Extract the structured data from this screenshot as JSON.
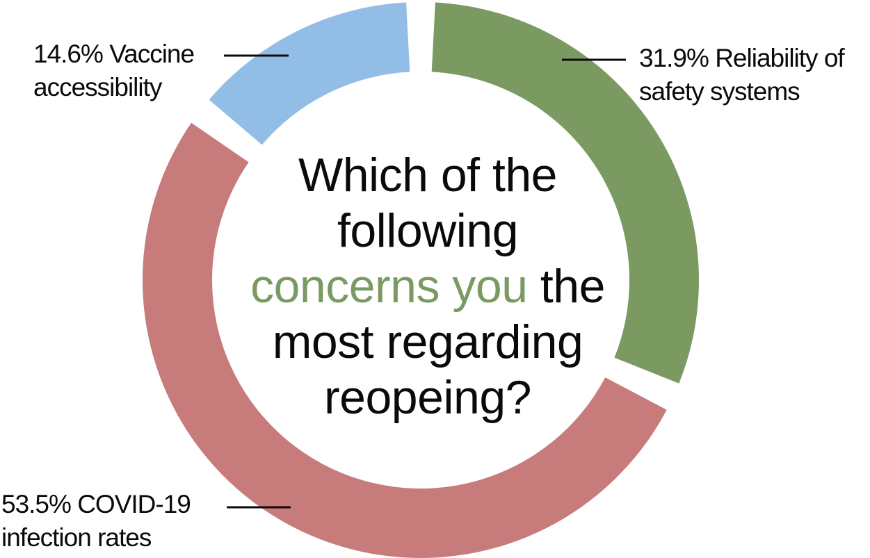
{
  "colors": {
    "vaccine": "#92bde6",
    "reliability": "#7a9a62",
    "covid": "#c77b7b",
    "highlight": "#7a9a62",
    "text": "#0a0a0a"
  },
  "title": {
    "line1": "Which of the",
    "line2": "following",
    "line3_highlight": "concerns you",
    "line3_rest": " the",
    "line4": "most regarding",
    "line5": "reopeing?"
  },
  "labels": {
    "vaccine": {
      "pct": "14.6%",
      "line1": "Vaccine",
      "line2": "accessibility"
    },
    "reliability": {
      "pct": "31.9%",
      "line1": "Reliability of",
      "line2": "safety systems"
    },
    "covid": {
      "pct": "53.5%",
      "line1": "COVID-19",
      "line2": "infection rates"
    }
  },
  "chart_data": {
    "type": "pie",
    "title": "Which of the following concerns you the most regarding reopeing?",
    "slices": [
      {
        "key": "reliability",
        "label": "Reliability of safety systems",
        "value": 31.9,
        "color": "#7a9a62"
      },
      {
        "key": "covid",
        "label": "COVID-19 infection rates",
        "value": 53.5,
        "color": "#c77b7b"
      },
      {
        "key": "vaccine",
        "label": "Vaccine accessibility",
        "value": 14.6,
        "color": "#92bde6"
      }
    ],
    "donut": true
  }
}
